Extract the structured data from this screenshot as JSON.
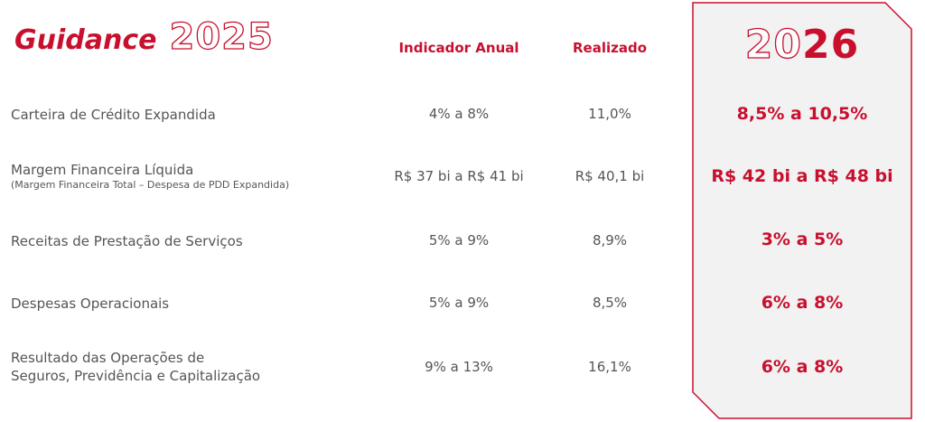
{
  "title": {
    "word": "Guidance",
    "year": "2025"
  },
  "columns": {
    "annual": "Indicador Anual",
    "realized": "Realizado"
  },
  "panel": {
    "year_outline": "20",
    "year_solid": "26",
    "border_color": "#c8102e",
    "fill_color": "#f2f2f3"
  },
  "colors": {
    "accent": "#c8102e",
    "text": "#555555"
  },
  "rows": [
    {
      "label": "Carteira de Crédito Expandida",
      "sublabel": "",
      "annual": "4% a 8%",
      "realized": "11,0%",
      "guidance": "8,5% a 10,5%"
    },
    {
      "label": "Margem Financeira Líquida",
      "sublabel": "(Margem Financeira Total – Despesa de PDD Expandida)",
      "annual": "R$ 37 bi a R$ 41 bi",
      "realized": "R$ 40,1 bi",
      "guidance": "R$ 42 bi a R$ 48 bi"
    },
    {
      "label": "Receitas de Prestação de Serviços",
      "sublabel": "",
      "annual": "5% a 9%",
      "realized": "8,9%",
      "guidance": "3% a 5%"
    },
    {
      "label": "Despesas Operacionais",
      "sublabel": "",
      "annual": "5% a 9%",
      "realized": "8,5%",
      "guidance": "6% a 8%"
    },
    {
      "label": "Resultado das Operações de",
      "label2": "Seguros, Previdência e Capitalização",
      "sublabel": "",
      "annual": "9% a 13%",
      "realized": "16,1%",
      "guidance": "6% a 8%"
    }
  ]
}
